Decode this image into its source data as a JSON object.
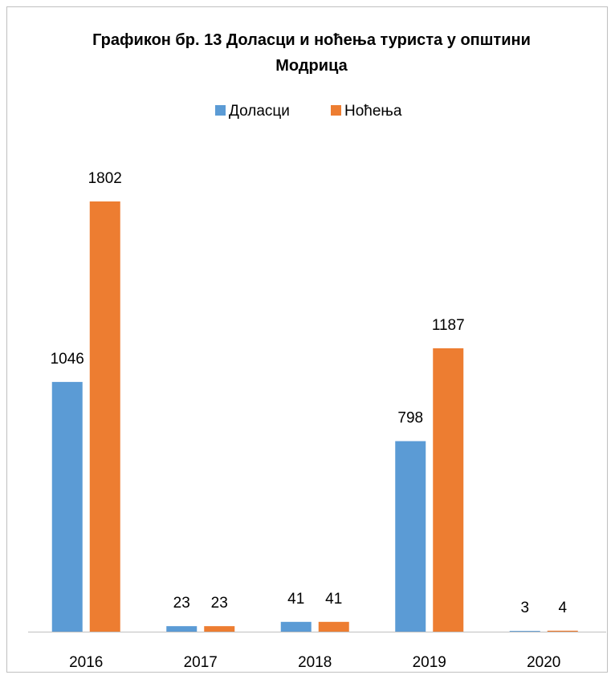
{
  "chart_data": {
    "type": "bar",
    "title": "Графикон бр. 13 Доласци и ноћења туриста у општини Модрица",
    "categories": [
      "2016",
      "2017",
      "2018",
      "2019",
      "2020"
    ],
    "series": [
      {
        "name": "Доласци",
        "color": "#5b9bd5",
        "values": [
          1046,
          23,
          41,
          798,
          3
        ]
      },
      {
        "name": "Ноћења",
        "color": "#ed7d31",
        "values": [
          1802,
          23,
          41,
          1187,
          4
        ]
      }
    ],
    "legend": "top"
  }
}
